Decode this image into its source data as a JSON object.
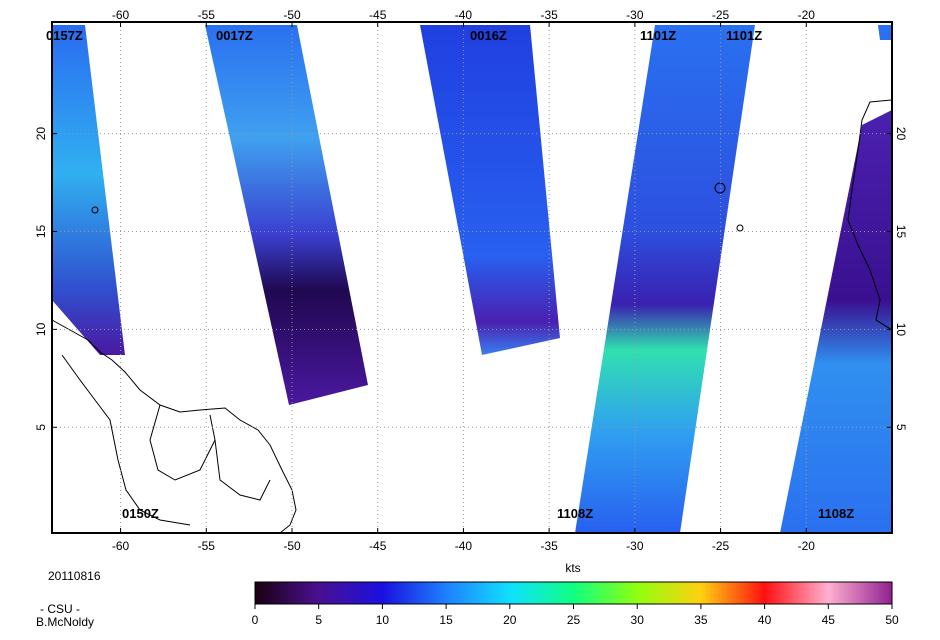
{
  "map": {
    "lon_range": [
      -64,
      -15
    ],
    "lat_range": [
      -0.4,
      25.7
    ],
    "lon_ticks": [
      -60,
      -55,
      -50,
      -45,
      -40,
      -35,
      -30,
      -25,
      -20
    ],
    "lat_ticks": [
      5,
      10,
      15,
      20
    ],
    "pass_times": [
      "0157Z",
      "0017Z",
      "0016Z",
      "1101Z",
      "1101Z",
      "0150Z",
      "1108Z",
      "1108Z"
    ],
    "grid": true
  },
  "date": "20110816",
  "credit": [
    "- CSU -",
    "B.McNoldy"
  ],
  "colorbar": {
    "label": "kts",
    "range": [
      0,
      50
    ],
    "ticks": [
      0,
      5,
      10,
      15,
      20,
      25,
      30,
      35,
      40,
      45,
      50
    ]
  }
}
